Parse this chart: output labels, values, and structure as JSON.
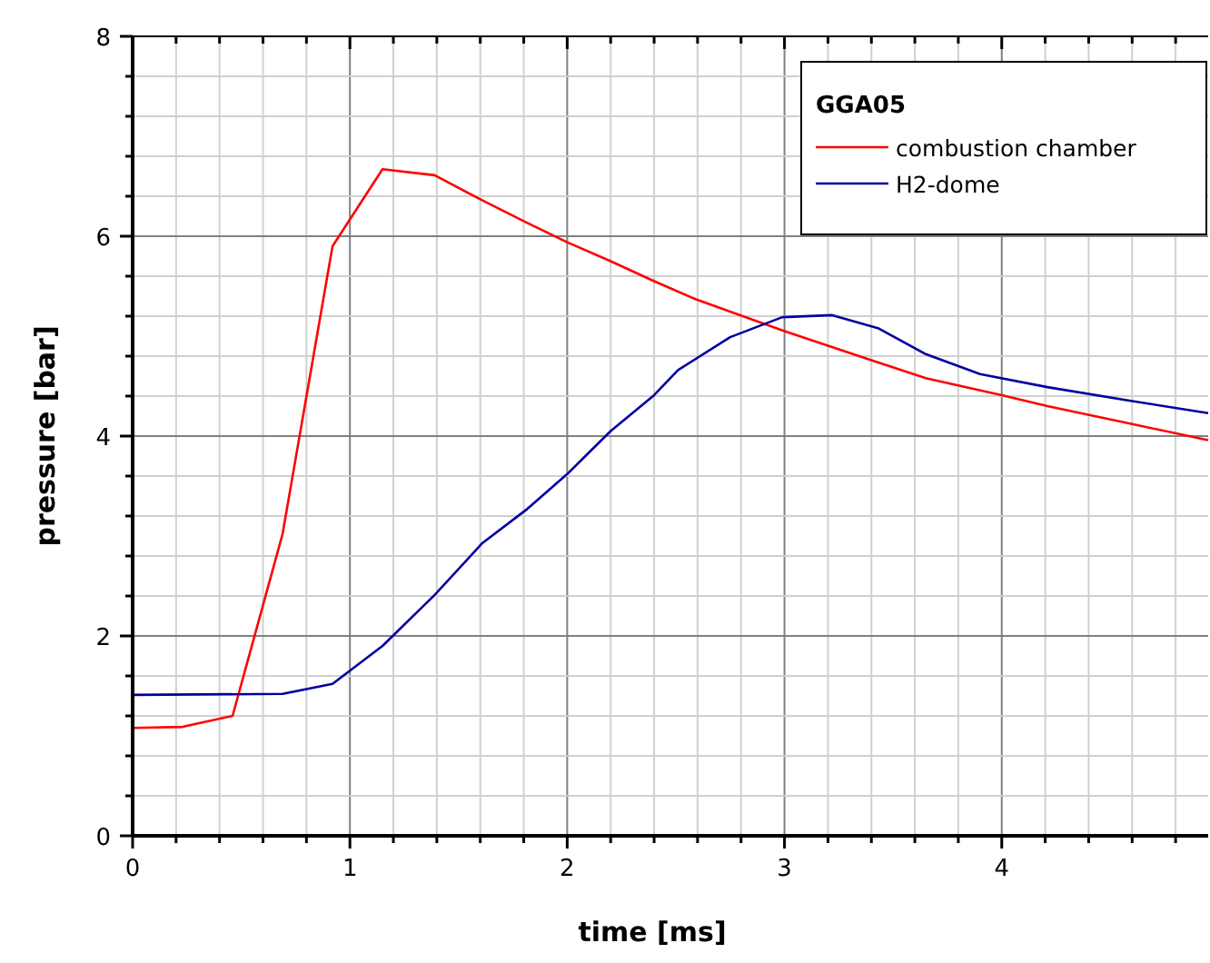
{
  "chart_data": {
    "type": "line",
    "xlabel": "time [ms]",
    "ylabel": "pressure [bar]",
    "legend_title": "GGA05",
    "legend": "top right",
    "grid": true,
    "marker": "none",
    "line_style": "solid",
    "xlim": [
      0,
      4.95
    ],
    "ylim": [
      0,
      8
    ],
    "xticks": [
      0,
      {
        "value": 0.2,
        "label": null
      },
      {
        "value": 0.4,
        "label": null
      },
      {
        "value": 0.6,
        "label": null
      },
      {
        "value": 0.8,
        "label": null
      },
      1,
      {
        "value": 1.2,
        "label": null
      },
      {
        "value": 1.4,
        "label": null
      },
      {
        "value": 1.6,
        "label": null
      },
      {
        "value": 1.8,
        "label": null
      },
      2,
      {
        "value": 2.2,
        "label": null
      },
      {
        "value": 2.4,
        "label": null
      },
      {
        "value": 2.6,
        "label": null
      },
      {
        "value": 2.8,
        "label": null
      },
      3,
      {
        "value": 3.2,
        "label": null
      },
      {
        "value": 3.4,
        "label": null
      },
      {
        "value": 3.6,
        "label": null
      },
      {
        "value": 3.8,
        "label": null
      },
      4,
      {
        "value": 4.2,
        "label": null
      },
      {
        "value": 4.4,
        "label": null
      },
      {
        "value": 4.6,
        "label": null
      },
      {
        "value": 4.8,
        "label": null
      }
    ],
    "yticks": [
      0,
      {
        "value": 0.4,
        "label": null
      },
      {
        "value": 0.8,
        "label": null
      },
      {
        "value": 1.2,
        "label": null
      },
      {
        "value": 1.6,
        "label": null
      },
      2,
      {
        "value": 2.4,
        "label": null
      },
      {
        "value": 2.8,
        "label": null
      },
      {
        "value": 3.2,
        "label": null
      },
      {
        "value": 3.6,
        "label": null
      },
      4,
      {
        "value": 4.4,
        "label": null
      },
      {
        "value": 4.8,
        "label": null
      },
      {
        "value": 5.2,
        "label": null
      },
      {
        "value": 5.6,
        "label": null
      },
      6,
      {
        "value": 6.4,
        "label": null
      },
      {
        "value": 6.8,
        "label": null
      },
      {
        "value": 7.2,
        "label": null
      },
      {
        "value": 7.6,
        "label": null
      },
      8
    ],
    "series": [
      {
        "name": "combustion chamber",
        "color": "#ff0000",
        "x": [
          0,
          0.23,
          0.46,
          0.69,
          0.92,
          1.15,
          1.39,
          1.59,
          1.81,
          2.0,
          2.2,
          2.4,
          2.59,
          3.0,
          3.4,
          3.65,
          4.0,
          4.21,
          4.6,
          4.95
        ],
        "values": [
          1.08,
          1.09,
          1.2,
          3.02,
          5.9,
          6.67,
          6.61,
          6.38,
          6.14,
          5.94,
          5.75,
          5.55,
          5.37,
          5.05,
          4.76,
          4.58,
          4.41,
          4.3,
          4.12,
          3.96
        ]
      },
      {
        "name": "H2-dome",
        "color": "#0000a0",
        "x": [
          0,
          0.69,
          0.92,
          1.15,
          1.39,
          1.61,
          1.81,
          2.0,
          2.2,
          2.4,
          2.51,
          2.75,
          2.99,
          3.22,
          3.43,
          3.65,
          3.9,
          4.21,
          4.6,
          4.95
        ],
        "values": [
          1.41,
          1.42,
          1.52,
          1.9,
          2.41,
          2.93,
          3.26,
          3.62,
          4.05,
          4.41,
          4.66,
          4.99,
          5.19,
          5.21,
          5.08,
          4.82,
          4.62,
          4.49,
          4.35,
          4.23
        ]
      }
    ]
  }
}
